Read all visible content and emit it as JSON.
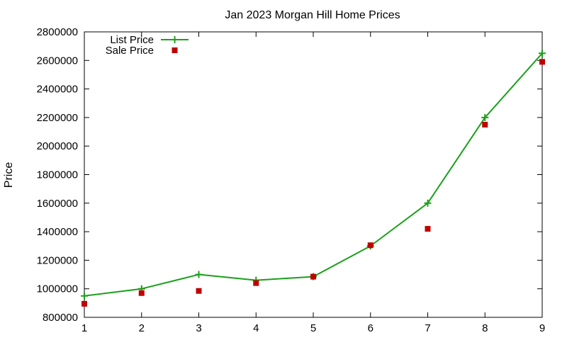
{
  "chart_data": {
    "type": "line",
    "title": "Jan 2023 Morgan Hill Home Prices",
    "xlabel": "",
    "ylabel": "Price",
    "x": [
      1,
      2,
      3,
      4,
      5,
      6,
      7,
      8,
      9
    ],
    "x_tick_labels": [
      "1",
      "2",
      "3",
      "4",
      "5",
      "6",
      "7",
      "8",
      "9"
    ],
    "y_tick_labels": [
      "800000",
      "1000000",
      "1200000",
      "1400000",
      "1600000",
      "1800000",
      "2000000",
      "2200000",
      "2400000",
      "2600000",
      "2800000"
    ],
    "xlim": [
      1,
      9
    ],
    "ylim": [
      800000,
      2800000
    ],
    "grid": false,
    "legend_position": "top-left",
    "series": [
      {
        "name": "List Price",
        "style": "line-with-plus-markers",
        "color": "#1aa01a",
        "values": [
          950000,
          1000000,
          1100000,
          1060000,
          1085000,
          1300000,
          1600000,
          2200000,
          2650000
        ]
      },
      {
        "name": "Sale Price",
        "style": "square-markers",
        "color": "#c00000",
        "values": [
          895000,
          970000,
          985000,
          1040000,
          1085000,
          1305000,
          1420000,
          2150000,
          2590000
        ]
      }
    ]
  }
}
